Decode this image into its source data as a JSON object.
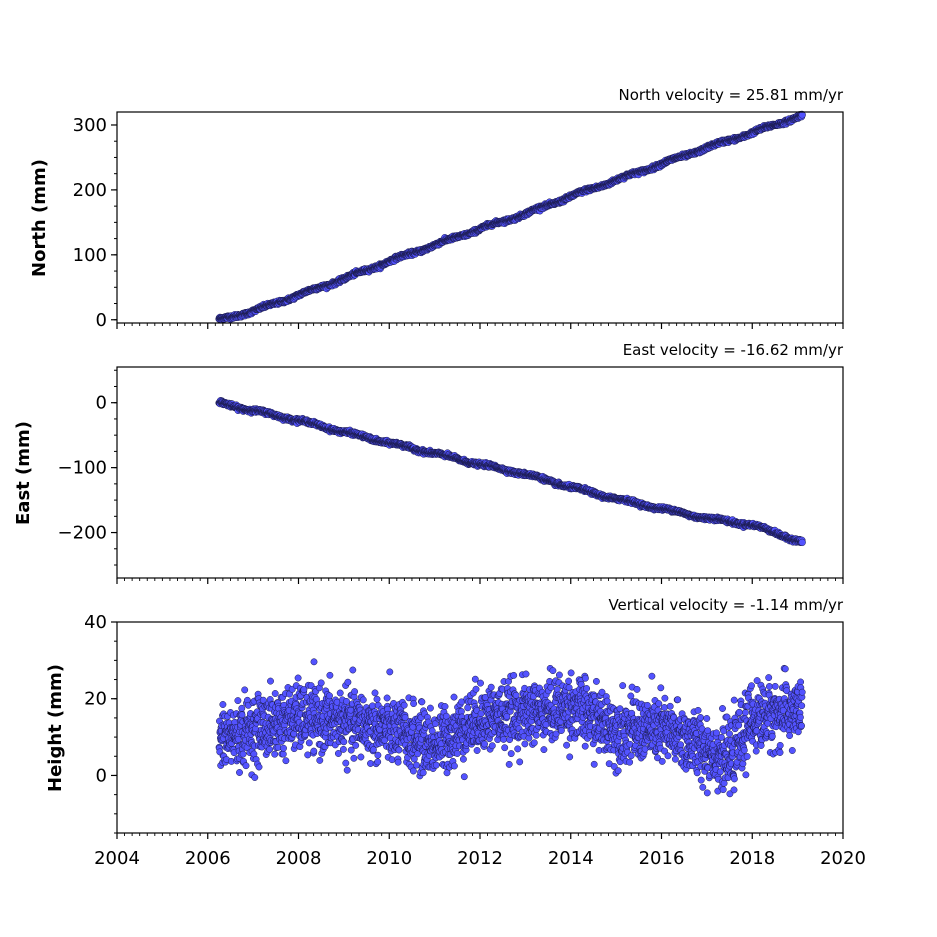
{
  "chart_data": [
    {
      "type": "scatter",
      "title": "North velocity = 25.81 mm/yr",
      "ylabel": "North (mm)",
      "xlim": [
        2004,
        2020
      ],
      "ylim": [
        -5,
        320
      ],
      "yticks": [
        0,
        100,
        200,
        300
      ],
      "ytick_labels": [
        "0",
        "100",
        "200",
        "300"
      ],
      "x_range": [
        2006.25,
        2019.1
      ],
      "series": [
        {
          "color": "#5353ff",
          "x": [
            2006.25,
            2007.0,
            2008.0,
            2009.0,
            2010.0,
            2011.0,
            2012.0,
            2013.0,
            2014.0,
            2015.0,
            2016.0,
            2017.0,
            2018.0,
            2019.1
          ],
          "y": [
            0,
            13,
            38,
            63,
            90,
            115,
            140,
            163,
            190,
            215,
            240,
            265,
            288,
            315
          ]
        }
      ]
    },
    {
      "type": "scatter",
      "title": "East velocity = -16.62 mm/yr",
      "ylabel": "East (mm)",
      "xlim": [
        2004,
        2020
      ],
      "ylim": [
        -270,
        55
      ],
      "yticks": [
        0,
        -100,
        -200
      ],
      "ytick_labels": [
        "0",
        "−100",
        "−200"
      ],
      "x_range": [
        2006.25,
        2019.1
      ],
      "series": [
        {
          "color": "#5353ff",
          "x": [
            2006.25,
            2007.0,
            2008.0,
            2009.0,
            2010.0,
            2011.0,
            2012.0,
            2013.0,
            2014.0,
            2015.0,
            2016.0,
            2017.0,
            2018.0,
            2019.1
          ],
          "y": [
            0,
            -12,
            -27,
            -45,
            -62,
            -78,
            -95,
            -110,
            -130,
            -148,
            -163,
            -178,
            -188,
            -215
          ]
        }
      ]
    },
    {
      "type": "scatter",
      "title": "Vertical velocity = -1.14 mm/yr",
      "ylabel": "Height (mm)",
      "xlim": [
        2004,
        2020
      ],
      "ylim": [
        -15,
        40
      ],
      "yticks": [
        0,
        20,
        40
      ],
      "ytick_labels": [
        "0",
        "20",
        "40"
      ],
      "x_range": [
        2006.25,
        2019.1
      ],
      "series": [
        {
          "color": "#5353ff",
          "x": [
            2006.25,
            2007.0,
            2008.0,
            2009.0,
            2010.0,
            2011.0,
            2012.0,
            2013.0,
            2014.0,
            2015.0,
            2016.0,
            2017.0,
            2017.5,
            2018.0,
            2019.1
          ],
          "y": [
            9,
            12,
            15,
            14,
            12,
            8,
            15,
            16,
            18,
            12,
            12,
            7,
            4,
            15,
            17
          ]
        }
      ],
      "xticks": [
        2004,
        2006,
        2008,
        2010,
        2012,
        2014,
        2016,
        2018,
        2020
      ],
      "xtick_labels": [
        "2004",
        "2006",
        "2008",
        "2010",
        "2012",
        "2014",
        "2016",
        "2018",
        "2020"
      ]
    }
  ]
}
